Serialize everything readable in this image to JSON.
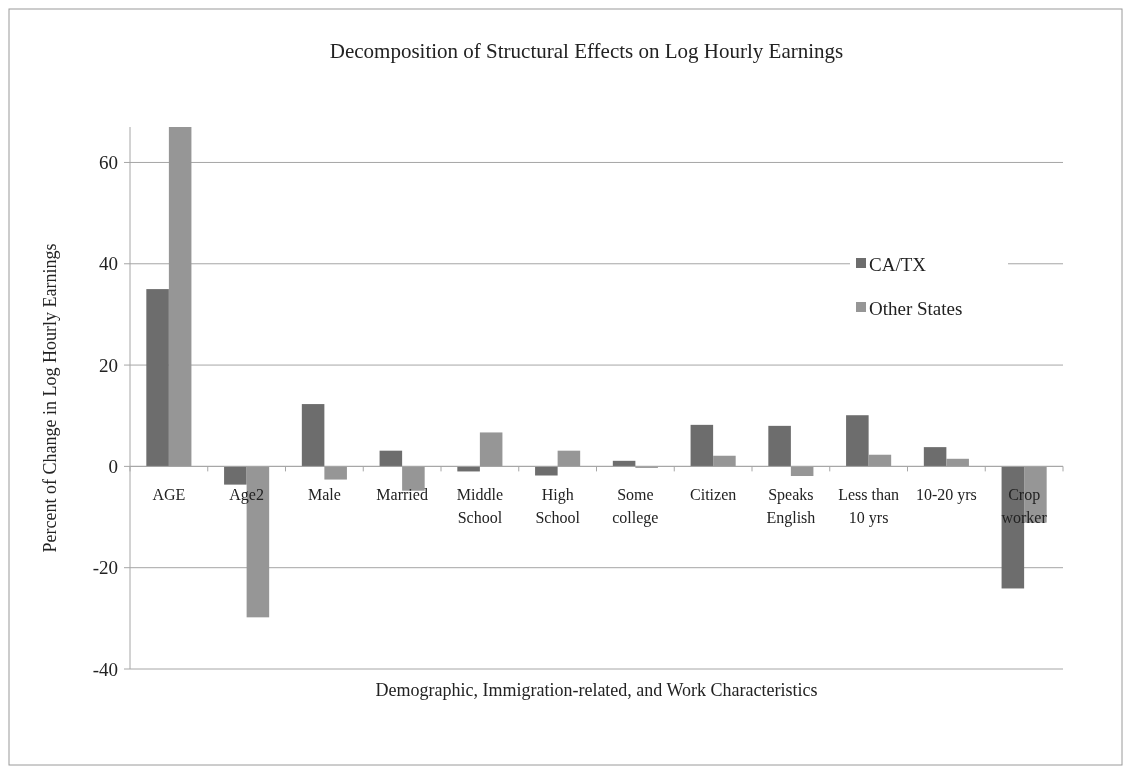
{
  "chart_data": {
    "type": "bar",
    "title": "Decomposition of Structural Effects on Log Hourly Earnings",
    "xlabel": "Demographic, Immigration-related, and Work Characteristics",
    "ylabel": "Percent of Change in Log Hourly Earnings",
    "categories": [
      "AGE",
      "Age2",
      "Male",
      "Married",
      "Middle School",
      "High School",
      "Some college",
      "Citizen",
      "Speaks English",
      "Less than 10 yrs",
      "10-20 yrs",
      "Crop worker"
    ],
    "series": [
      {
        "name": "CA/TX",
        "color": "#6d6d6d",
        "values": [
          35,
          -3.6,
          12.3,
          3.1,
          -1,
          -1.8,
          1.1,
          8.2,
          8,
          10.1,
          3.8,
          -24.1
        ]
      },
      {
        "name": "Other States",
        "color": "#969696",
        "values": [
          67,
          -29.8,
          -2.6,
          -4.8,
          6.7,
          3.1,
          -0.3,
          2.1,
          -1.9,
          2.3,
          1.5,
          -11.1
        ]
      }
    ],
    "ylim": [
      -40,
      67
    ],
    "yticks": [
      -40,
      -20,
      0,
      20,
      40,
      60
    ],
    "grid": "y",
    "legend": "right"
  }
}
